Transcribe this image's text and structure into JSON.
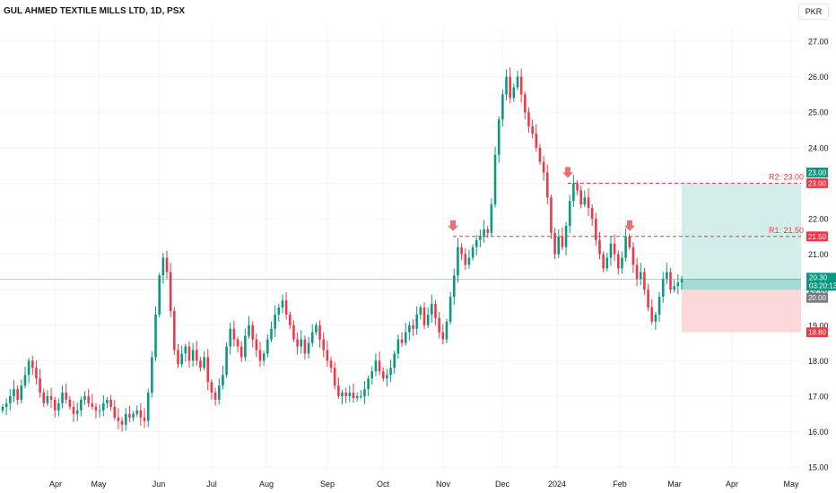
{
  "header": {
    "title": "GUL AHMED TEXTILE MILLS LTD, 1D, PSX",
    "currency": "PKR"
  },
  "colors": {
    "up": "#089981",
    "down": "#f23645",
    "resistance": "#f23645",
    "target_zone": "#d1eeea",
    "stop_zone": "#fdd8d8",
    "grid": "#f0f3fa",
    "axis_text": "#131722"
  },
  "price_labels": {
    "target": "23.00",
    "r2": "23.00",
    "r1": "21.50",
    "last": "20.30",
    "countdown": "03:20:13",
    "entry": "20.00",
    "stop": "18.80"
  },
  "annotations": {
    "r2_text": "R2: 23.00",
    "r1_text": "R1: 21.50"
  },
  "chart_data": {
    "type": "candlestick",
    "title": "GUL AHMED TEXTILE MILLS LTD, 1D, PSX",
    "ylim": [
      15.0,
      27.0
    ],
    "y_ticks": [
      "15.00",
      "16.00",
      "17.00",
      "18.00",
      "19.00",
      "20.00",
      "21.00",
      "22.00",
      "23.00",
      "24.00",
      "25.00",
      "26.00",
      "27.00"
    ],
    "x_ticks": [
      "Apr",
      "May",
      "Jun",
      "Jul",
      "Aug",
      "Sep",
      "Oct",
      "Nov",
      "Dec",
      "2024",
      "Feb",
      "Mar",
      "Apr",
      "May"
    ],
    "grid": true,
    "levels": [
      {
        "name": "R2",
        "value": 23.0
      },
      {
        "name": "R1",
        "value": 21.5
      }
    ],
    "position": {
      "entry": 20.0,
      "target": 23.0,
      "stop": 18.8,
      "last": 20.3
    },
    "resistance_tests": [
      {
        "month": "Nov",
        "price": 21.5
      },
      {
        "month": "Jan",
        "price": 23.0
      },
      {
        "month": "Feb",
        "price": 21.5
      }
    ],
    "closes": [
      16.7,
      16.8,
      17.0,
      17.2,
      16.9,
      17.3,
      17.6,
      18.0,
      17.8,
      17.5,
      17.1,
      16.8,
      17.0,
      16.9,
      16.6,
      16.8,
      17.1,
      16.9,
      16.7,
      16.5,
      16.6,
      16.9,
      17.0,
      16.8,
      16.7,
      16.6,
      16.6,
      16.8,
      16.9,
      16.7,
      16.4,
      16.3,
      16.2,
      16.5,
      16.4,
      16.5,
      16.6,
      16.4,
      16.3,
      17.1,
      18.1,
      19.3,
      20.4,
      20.9,
      20.5,
      19.4,
      18.3,
      17.9,
      18.2,
      18.4,
      18.0,
      18.3,
      18.0,
      17.8,
      18.1,
      17.4,
      17.1,
      16.9,
      17.3,
      17.6,
      18.4,
      18.9,
      18.6,
      18.4,
      18.1,
      18.7,
      19.0,
      18.6,
      18.3,
      18.0,
      18.2,
      18.6,
      18.9,
      19.3,
      19.5,
      19.7,
      19.3,
      19.0,
      18.6,
      18.4,
      18.6,
      18.2,
      18.5,
      18.8,
      19.0,
      18.6,
      18.3,
      18.0,
      17.8,
      17.3,
      17.0,
      17.1,
      17.0,
      17.1,
      16.95,
      17.0,
      17.0,
      17.2,
      17.5,
      17.7,
      18.0,
      17.7,
      17.5,
      17.6,
      17.8,
      18.2,
      18.6,
      18.5,
      18.8,
      19.0,
      18.9,
      19.3,
      19.5,
      19.0,
      19.3,
      19.6,
      19.2,
      18.8,
      18.6,
      19.1,
      19.8,
      20.4,
      21.2,
      21.0,
      20.7,
      20.9,
      21.2,
      21.4,
      21.5,
      21.7,
      21.6,
      22.4,
      23.8,
      24.8,
      25.5,
      26.0,
      25.4,
      25.7,
      26.0,
      25.5,
      25.0,
      24.6,
      24.4,
      24.0,
      23.6,
      23.3,
      22.6,
      21.6,
      21.0,
      21.5,
      21.2,
      21.8,
      22.5,
      23.0,
      22.8,
      22.4,
      22.6,
      22.3,
      22.0,
      21.4,
      21.0,
      20.6,
      20.9,
      21.3,
      21.0,
      20.6,
      20.9,
      21.5,
      21.2,
      20.7,
      20.3,
      20.5,
      20.0,
      19.5,
      19.1,
      19.3,
      19.8,
      20.3,
      20.5,
      20.0,
      20.1,
      20.2,
      20.3
    ],
    "last_value": 20.3
  }
}
